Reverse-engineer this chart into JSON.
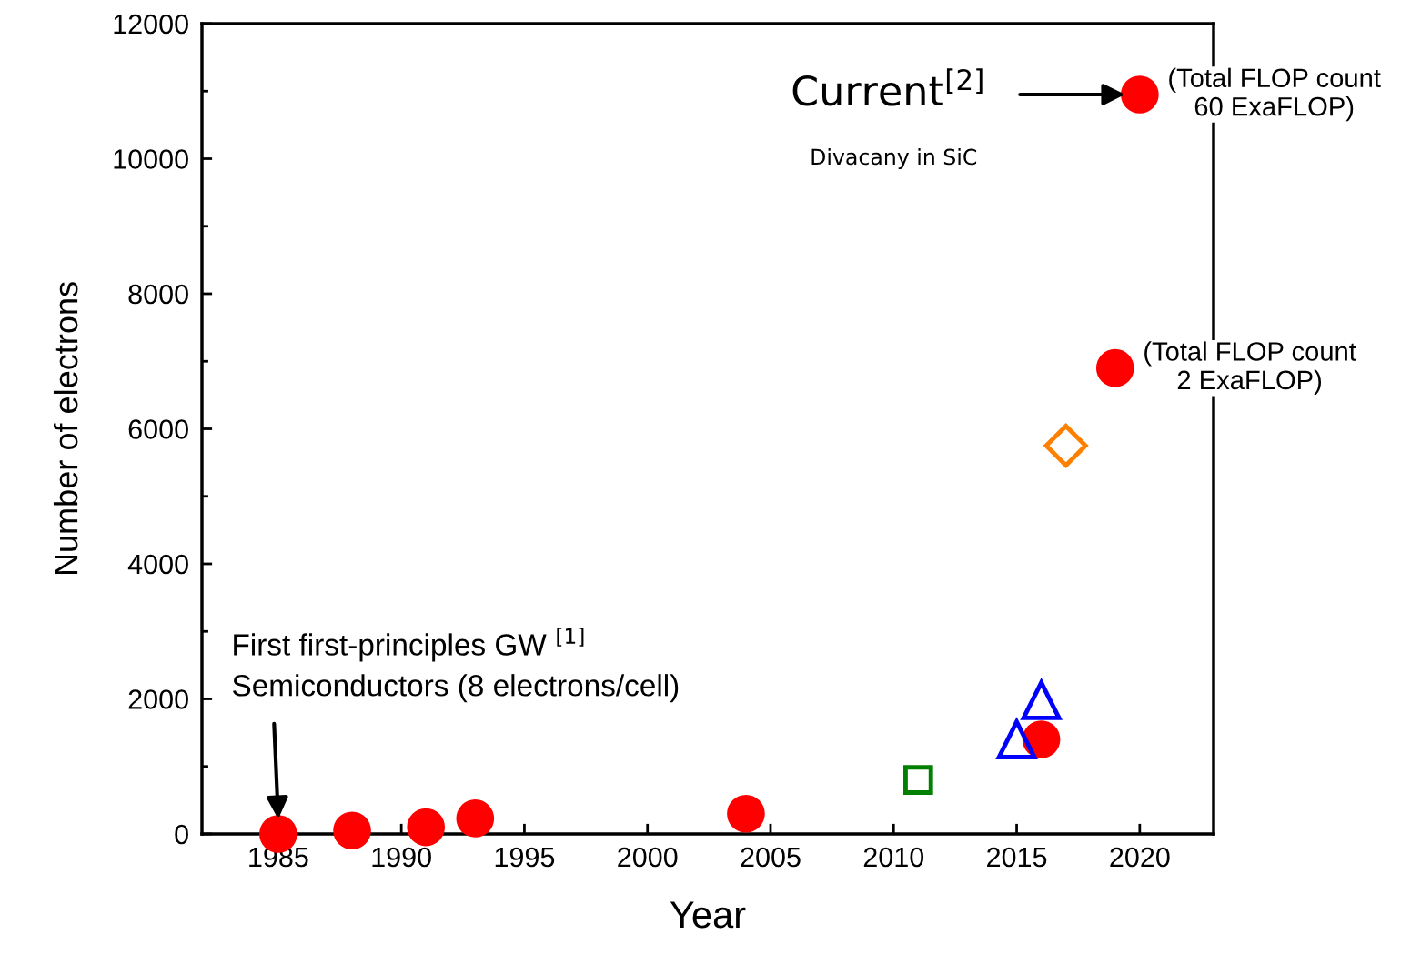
{
  "chart_data": {
    "type": "scatter",
    "xlabel": "Year",
    "ylabel": "Number of electrons",
    "xlim": [
      1981.9,
      2023.0
    ],
    "xticks": [
      1985,
      1990,
      1995,
      2000,
      2005,
      2010,
      2015,
      2020
    ],
    "ylim": [
      0,
      12000
    ],
    "yticks": [
      0,
      2000,
      4000,
      6000,
      8000,
      10000,
      12000
    ],
    "grid": false,
    "legend": false,
    "series": [
      {
        "color": "#ff0000",
        "marker": "circle",
        "x": [
          1985,
          1988,
          1991,
          1993,
          2004,
          2016,
          2019,
          2020
        ],
        "values": [
          0,
          50,
          100,
          230,
          300,
          1400,
          6900,
          10950
        ]
      },
      {
        "color": "#0000ff",
        "marker": "triangle",
        "x": [
          2015,
          2016
        ],
        "values": [
          1400,
          1980
        ]
      },
      {
        "color": "#008000",
        "marker": "square",
        "x": [
          2011
        ],
        "values": [
          800
        ]
      },
      {
        "color": "#ff8000",
        "marker": "diamond",
        "x": [
          2017
        ],
        "values": [
          5750
        ]
      }
    ],
    "annotations": [
      {
        "text": "Current$^{[2]}$",
        "x": 2019.4,
        "y": 10950
      },
      "Divacany in SiC",
      "First first-principles GW $^{[1]}$",
      {
        "text": "Semiconductors (8 electrons/cell)",
        "x": 1985,
        "y": 220
      },
      {
        "text": "(Total FLOP count\n60 ExaFLOP)",
        "x": 2020,
        "y": 10950
      },
      {
        "text": "(Total FLOP count\n2 ExaFLOP)",
        "x": 2019,
        "y": 6900
      }
    ]
  }
}
